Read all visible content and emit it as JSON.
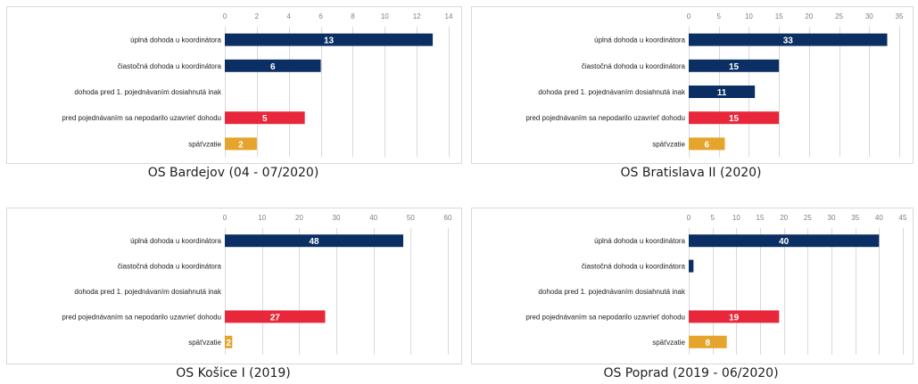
{
  "colors": {
    "navy": "#0b2f63",
    "red": "#e8283a",
    "orange": "#e5a42b",
    "grid": "#d9d9d9",
    "tick_text": "#7f7f7f",
    "label_text": "#222222",
    "value_text": "#ffffff"
  },
  "chart_data": [
    {
      "type": "bar",
      "orientation": "horizontal",
      "title": "OS Bardejov (04 - 07/2020)",
      "categories": [
        "úplná dohoda u koordinátora",
        "čiastočná dohoda u koordinátora",
        "dohoda pred 1. pojednávaním dosiahnutá inak",
        "pred pojednávaním sa nepodarilo uzavrieť dohodu",
        "späťvzatie"
      ],
      "values": [
        13,
        6,
        null,
        5,
        2
      ],
      "bar_colors": [
        "navy",
        "navy",
        "navy",
        "red",
        "orange"
      ],
      "value_labels": [
        "13",
        "6",
        "",
        "5",
        "2"
      ],
      "xlim": [
        0,
        14
      ],
      "xticks": [
        0,
        2,
        4,
        6,
        8,
        10,
        12,
        14
      ],
      "axis_position": "top",
      "grid": true
    },
    {
      "type": "bar",
      "orientation": "horizontal",
      "title": "OS Bratislava II  (2020)",
      "categories": [
        "úplná dohoda u koordinátora",
        "čiastočná dohoda u koordinátora",
        "dohoda pred 1. pojednávaním dosiahnutá inak",
        "pred pojednávaním sa nepodarilo uzavrieť dohodu",
        "späťvzatie"
      ],
      "values": [
        33,
        15,
        11,
        15,
        6
      ],
      "bar_colors": [
        "navy",
        "navy",
        "navy",
        "red",
        "orange"
      ],
      "value_labels": [
        "33",
        "15",
        "11",
        "15",
        "6"
      ],
      "xlim": [
        0,
        35
      ],
      "xticks": [
        0,
        5,
        10,
        15,
        20,
        25,
        30,
        35
      ],
      "axis_position": "top",
      "grid": true
    },
    {
      "type": "bar",
      "orientation": "horizontal",
      "title": "OS Košice I (2019)",
      "categories": [
        "úplná dohoda u koordinátora",
        "čiastočná dohoda u koordinátora",
        "dohoda pred 1. pojednávaním dosiahnutá inak",
        "pred pojednávaním sa nepodarilo uzavrieť dohodu",
        "späťvzatie"
      ],
      "values": [
        48,
        null,
        null,
        27,
        2
      ],
      "bar_colors": [
        "navy",
        "navy",
        "navy",
        "red",
        "orange"
      ],
      "value_labels": [
        "48",
        "",
        "",
        "27",
        "2"
      ],
      "xlim": [
        0,
        60
      ],
      "xticks": [
        0,
        10,
        20,
        30,
        40,
        50,
        60
      ],
      "axis_position": "top",
      "grid": true
    },
    {
      "type": "bar",
      "orientation": "horizontal",
      "title": "OS Poprad (2019 - 06/2020)",
      "categories": [
        "úplná dohoda u koordinátora",
        "čiastočná dohoda u koordinátora",
        "dohoda pred 1. pojednávaním dosiahnutá inak",
        "pred pojednávaním sa nepodarilo uzavrieť dohodu",
        "späťvzatie"
      ],
      "values": [
        40,
        1,
        null,
        19,
        8
      ],
      "bar_colors": [
        "navy",
        "navy",
        "navy",
        "red",
        "orange"
      ],
      "value_labels": [
        "40",
        "",
        "",
        "19",
        "8"
      ],
      "xlim": [
        0,
        45
      ],
      "xticks": [
        0,
        5,
        10,
        15,
        20,
        25,
        30,
        35,
        40,
        45
      ],
      "axis_position": "top",
      "grid": true
    }
  ]
}
